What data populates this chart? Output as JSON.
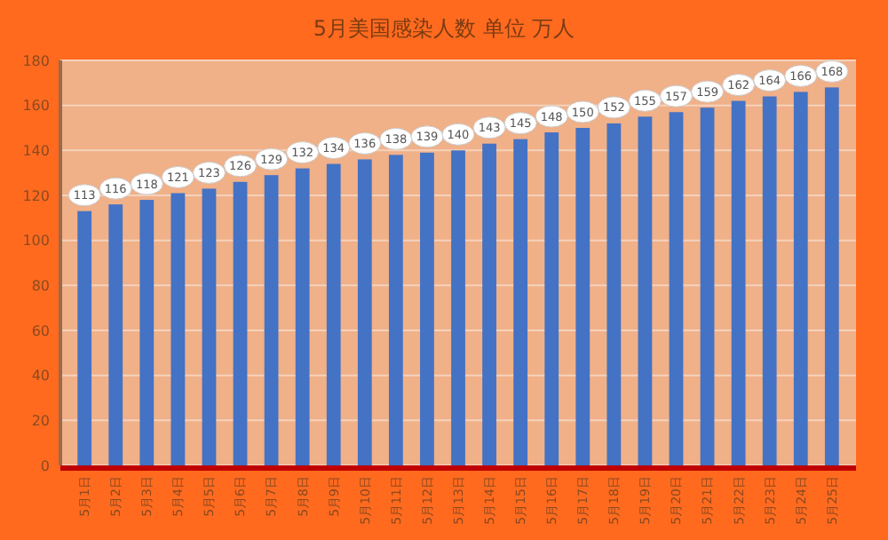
{
  "chart_data": {
    "type": "bar",
    "title": "5月美国感染人数 单位 万人",
    "categories": [
      "5月1日",
      "5月2日",
      "5月3日",
      "5月4日",
      "5月5日",
      "5月6日",
      "5月7日",
      "5月8日",
      "5月9日",
      "5月10日",
      "5月11日",
      "5月12日",
      "5月13日",
      "5月14日",
      "5月15日",
      "5月16日",
      "5月17日",
      "5月18日",
      "5月19日",
      "5月20日",
      "5月21日",
      "5月22日",
      "5月23日",
      "5月24日",
      "5月25日"
    ],
    "values": [
      113,
      116,
      118,
      121,
      123,
      126,
      129,
      132,
      134,
      136,
      138,
      139,
      140,
      143,
      145,
      148,
      150,
      152,
      155,
      157,
      159,
      162,
      164,
      166,
      168
    ],
    "color": "#4472c4",
    "ylim": [
      0,
      180
    ],
    "yticks": [
      0,
      20,
      40,
      60,
      80,
      100,
      120,
      140,
      160,
      180
    ],
    "grid": "y",
    "data_labels": true
  }
}
